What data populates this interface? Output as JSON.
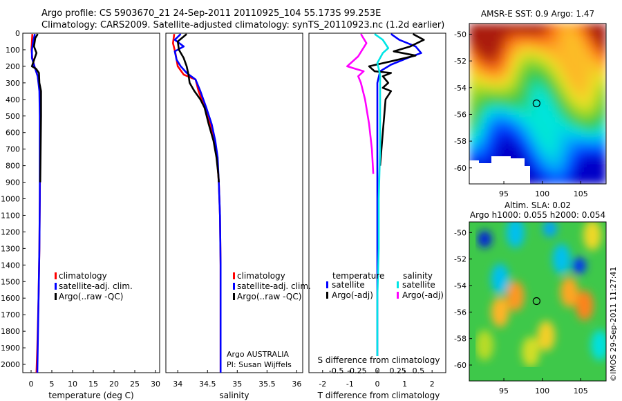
{
  "header": {
    "title_line1": "Argo profile: CS 5903670_21 24-Sep-2011 20110925_104 55.173S 99.253E",
    "title_line2": "Climatology: CARS2009. Satellite-adjusted climatology: synTS_20110923.nc (1.2d earlier)"
  },
  "credit": "©IMOS 29-Sep-2011 11:27:41",
  "colors": {
    "climatology": "#ff0000",
    "satellite": "#0000ff",
    "argo": "#000000",
    "salinity_satellite": "#00e5e5",
    "salinity_argo": "#ff00ff"
  },
  "chart_data": [
    {
      "id": "temperature",
      "type": "line",
      "xlabel": "temperature (deg C)",
      "ylabel": "",
      "xlim": [
        -2,
        31
      ],
      "ylim": [
        0,
        2050
      ],
      "y_inverted": true,
      "xticks": [
        "0",
        "5",
        "10",
        "15",
        "20",
        "25",
        "30"
      ],
      "xtick_values": [
        0,
        5,
        10,
        15,
        20,
        25,
        30
      ],
      "yticks": [
        "0",
        "100",
        "200",
        "300",
        "400",
        "500",
        "600",
        "700",
        "800",
        "900",
        "1000",
        "1100",
        "1200",
        "1300",
        "1400",
        "1500",
        "1600",
        "1700",
        "1800",
        "1900",
        "2000"
      ],
      "legend": {
        "position": "middle",
        "items": [
          {
            "label": "climatology",
            "color": "#ff0000"
          },
          {
            "label": "satellite-adj. clim.",
            "color": "#0000ff"
          },
          {
            "label": "Argo(..raw -QC)",
            "color": "#000000"
          }
        ]
      },
      "series": [
        {
          "name": "climatology",
          "color": "#ff0000",
          "points": [
            [
              0.3,
              5
            ],
            [
              0.2,
              50
            ],
            [
              0.1,
              100
            ],
            [
              0.3,
              150
            ],
            [
              0.8,
              200
            ],
            [
              1.6,
              260
            ],
            [
              2.1,
              350
            ],
            [
              2.2,
              500
            ],
            [
              2.2,
              700
            ],
            [
              2.1,
              1000
            ],
            [
              2.0,
              1300
            ],
            [
              1.8,
              1600
            ],
            [
              1.5,
              1900
            ],
            [
              1.3,
              2050
            ]
          ]
        },
        {
          "name": "satellite-adj. clim.",
          "color": "#0000ff",
          "points": [
            [
              0.9,
              5
            ],
            [
              0.5,
              50
            ],
            [
              0.2,
              100
            ],
            [
              0.2,
              150
            ],
            [
              0.8,
              200
            ],
            [
              1.6,
              260
            ],
            [
              2.0,
              350
            ],
            [
              2.1,
              500
            ],
            [
              2.1,
              700
            ],
            [
              2.1,
              1000
            ],
            [
              2.0,
              1300
            ],
            [
              1.8,
              1600
            ],
            [
              1.6,
              1900
            ],
            [
              1.5,
              2050
            ]
          ]
        },
        {
          "name": "Argo(..raw -QC)",
          "color": "#000000",
          "points": [
            [
              1.6,
              5
            ],
            [
              1.0,
              30
            ],
            [
              0.7,
              80
            ],
            [
              1.3,
              120
            ],
            [
              0.6,
              170
            ],
            [
              0.2,
              200
            ],
            [
              1.2,
              215
            ],
            [
              1.9,
              240
            ],
            [
              2.0,
              300
            ],
            [
              2.4,
              350
            ],
            [
              2.4,
              500
            ],
            [
              2.3,
              700
            ],
            [
              2.2,
              900
            ]
          ]
        }
      ]
    },
    {
      "id": "salinity",
      "type": "line",
      "xlabel": "salinity",
      "ylabel": "",
      "xlim": [
        33.8,
        36.1
      ],
      "ylim": [
        0,
        2050
      ],
      "y_inverted": true,
      "xticks": [
        "34",
        "34.5",
        "35",
        "35.5",
        "36"
      ],
      "xtick_values": [
        34,
        34.5,
        35,
        35.5,
        36
      ],
      "annotations": [
        "Argo AUSTRALIA",
        "PI: Susan Wijffels"
      ],
      "legend": {
        "position": "lower-middle",
        "items": [
          {
            "label": "climatology",
            "color": "#ff0000"
          },
          {
            "label": "satellite-adj. clim.",
            "color": "#0000ff"
          },
          {
            "label": "Argo(..raw -QC)",
            "color": "#000000"
          }
        ]
      },
      "series": [
        {
          "name": "climatology",
          "color": "#ff0000",
          "points": [
            [
              33.94,
              5
            ],
            [
              33.92,
              60
            ],
            [
              33.96,
              120
            ],
            [
              34.0,
              200
            ],
            [
              34.1,
              250
            ],
            [
              34.3,
              280
            ],
            [
              34.35,
              350
            ],
            [
              34.45,
              450
            ],
            [
              34.55,
              550
            ],
            [
              34.62,
              650
            ],
            [
              34.66,
              750
            ],
            [
              34.69,
              900
            ],
            [
              34.71,
              1100
            ],
            [
              34.72,
              1400
            ],
            [
              34.72,
              1700
            ],
            [
              34.72,
              2050
            ]
          ]
        },
        {
          "name": "satellite-adj. clim.",
          "color": "#0000ff",
          "points": [
            [
              34.05,
              5
            ],
            [
              33.95,
              40
            ],
            [
              34.1,
              80
            ],
            [
              33.95,
              110
            ],
            [
              33.98,
              160
            ],
            [
              34.05,
              200
            ],
            [
              34.15,
              240
            ],
            [
              34.3,
              280
            ],
            [
              34.38,
              350
            ],
            [
              34.48,
              450
            ],
            [
              34.57,
              550
            ],
            [
              34.63,
              650
            ],
            [
              34.67,
              750
            ],
            [
              34.69,
              900
            ],
            [
              34.71,
              1100
            ],
            [
              34.72,
              1400
            ],
            [
              34.72,
              1700
            ],
            [
              34.72,
              2050
            ]
          ]
        },
        {
          "name": "Argo(..raw -QC)",
          "color": "#000000",
          "points": [
            [
              34.15,
              5
            ],
            [
              34.0,
              50
            ],
            [
              34.02,
              100
            ],
            [
              34.1,
              150
            ],
            [
              34.15,
              200
            ],
            [
              34.18,
              250
            ],
            [
              34.2,
              300
            ],
            [
              34.28,
              350
            ],
            [
              34.38,
              400
            ],
            [
              34.45,
              450
            ],
            [
              34.52,
              550
            ],
            [
              34.6,
              650
            ],
            [
              34.65,
              750
            ],
            [
              34.68,
              850
            ],
            [
              34.69,
              900
            ]
          ]
        }
      ]
    },
    {
      "id": "difference",
      "type": "line",
      "xlabel": "T difference from climatology",
      "xlabel_top": "S difference from climatology",
      "xlim": [
        -2.5,
        2.5
      ],
      "ylim": [
        0,
        2050
      ],
      "y_inverted": true,
      "xticks": [
        "-2",
        "-1",
        "0",
        "1",
        "2"
      ],
      "xtick_values": [
        -2,
        -1,
        0,
        1,
        2
      ],
      "sticks": [
        "-0.5",
        "-0.25",
        "0",
        "0.25",
        "0.5"
      ],
      "stick_values": [
        -1.5,
        -0.75,
        0,
        0.75,
        1.5
      ],
      "legend": {
        "position": "lower-middle",
        "group_titles": [
          "temperature",
          "salinity"
        ],
        "items": [
          {
            "label": "satellite",
            "color": "#0000ff"
          },
          {
            "label": "Argo(-adj)",
            "color": "#000000"
          },
          {
            "label": "satellite",
            "color": "#00e5e5"
          },
          {
            "label": "Argo(-adj)",
            "color": "#ff00ff"
          }
        ]
      },
      "series": [
        {
          "name": "T satellite",
          "color": "#0000ff",
          "points": [
            [
              0.5,
              5
            ],
            [
              0.8,
              40
            ],
            [
              1.4,
              80
            ],
            [
              1.6,
              120
            ],
            [
              1.1,
              150
            ],
            [
              0.5,
              190
            ],
            [
              0.1,
              230
            ],
            [
              0.0,
              300
            ],
            [
              0.0,
              500
            ],
            [
              0.0,
              800
            ],
            [
              0.0,
              1100
            ],
            [
              0.0,
              1400
            ],
            [
              0.0,
              1700
            ],
            [
              0.0,
              1950
            ]
          ]
        },
        {
          "name": "T Argo(-adj)",
          "color": "#000000",
          "points": [
            [
              1.3,
              5
            ],
            [
              1.7,
              40
            ],
            [
              1.2,
              80
            ],
            [
              0.6,
              110
            ],
            [
              1.4,
              135
            ],
            [
              0.5,
              170
            ],
            [
              -0.3,
              200
            ],
            [
              -0.1,
              230
            ],
            [
              0.5,
              240
            ],
            [
              0.2,
              260
            ],
            [
              0.4,
              300
            ],
            [
              0.2,
              330
            ],
            [
              0.5,
              350
            ],
            [
              0.3,
              400
            ],
            [
              0.2,
              600
            ],
            [
              0.1,
              800
            ]
          ]
        },
        {
          "name": "S satellite",
          "color": "#00e5e5",
          "points": [
            [
              -0.1,
              5
            ],
            [
              0.2,
              40
            ],
            [
              0.4,
              90
            ],
            [
              0.2,
              120
            ],
            [
              0.0,
              180
            ],
            [
              0.1,
              250
            ],
            [
              0.1,
              400
            ],
            [
              0.1,
              700
            ],
            [
              0.05,
              1000
            ],
            [
              0.05,
              1300
            ],
            [
              0.0,
              1600
            ],
            [
              0.0,
              1950
            ]
          ]
        },
        {
          "name": "S Argo(-adj)",
          "color": "#ff00ff",
          "points": [
            [
              -0.6,
              5
            ],
            [
              -0.4,
              60
            ],
            [
              -0.7,
              140
            ],
            [
              -1.1,
              200
            ],
            [
              -0.5,
              230
            ],
            [
              -0.7,
              260
            ],
            [
              -0.6,
              300
            ],
            [
              -0.45,
              400
            ],
            [
              -0.3,
              550
            ],
            [
              -0.2,
              700
            ],
            [
              -0.15,
              850
            ]
          ]
        }
      ]
    },
    {
      "id": "sst_map",
      "type": "heatmap",
      "title": "AMSR-E SST: 0.9 Argo: 1.47",
      "xticks": [
        "95",
        "100",
        "105"
      ],
      "xtick_values": [
        95,
        100,
        105
      ],
      "yticks": [
        "-50",
        "-52",
        "-54",
        "-56",
        "-58",
        "-60"
      ],
      "ytick_values": [
        -50,
        -52,
        -54,
        -56,
        -58,
        -60
      ],
      "xlim": [
        90.5,
        108.3
      ],
      "ylim": [
        -61.2,
        -49.2
      ],
      "marker": {
        "lon": 99.253,
        "lat": -55.173
      }
    },
    {
      "id": "sla_map",
      "type": "heatmap",
      "title_line1": "Altim. SLA: 0.02",
      "title_line2": "Argo h1000: 0.055 h2000: 0.054",
      "xticks": [
        "95",
        "100",
        "105"
      ],
      "xtick_values": [
        95,
        100,
        105
      ],
      "yticks": [
        "-50",
        "-52",
        "-54",
        "-56",
        "-58",
        "-60"
      ],
      "ytick_values": [
        -50,
        -52,
        -54,
        -56,
        -58,
        -60
      ],
      "xlim": [
        90.5,
        108.3
      ],
      "ylim": [
        -61.2,
        -49.2
      ],
      "marker": {
        "lon": 99.253,
        "lat": -55.173
      }
    }
  ]
}
